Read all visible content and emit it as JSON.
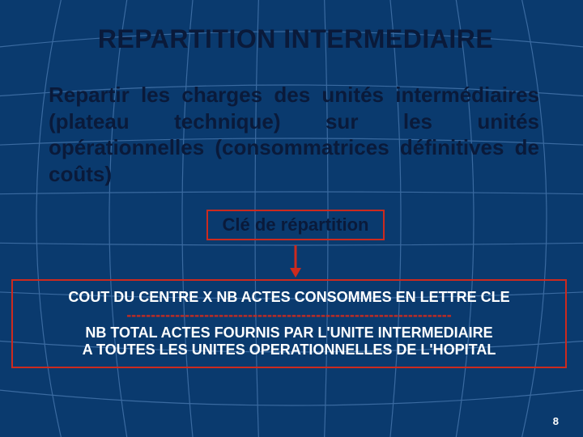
{
  "colors": {
    "background": "#0a3a6e",
    "grid_line": "#3a6aa0",
    "text_dark": "#0a1a3a",
    "text_white": "#ffffff",
    "border_red": "#cc2a1e",
    "arrow_red": "#cc2a1e"
  },
  "title": {
    "text": "REPARTITION INTERMEDIAIRE",
    "fontsize": 32,
    "color": "#0a1a3a"
  },
  "paragraph": {
    "text": "Repartir les charges des unités intermédiaires (plateau technique) sur les unités opérationnelles (consommatrices définitives de coûts)",
    "fontsize": 26,
    "color": "#0a1a3a"
  },
  "key_box": {
    "label": "Clé de répartition",
    "fontsize": 22,
    "text_color": "#0a1a3a",
    "border_color": "#cc2a1e"
  },
  "arrow": {
    "color": "#cc2a1e",
    "height": 40
  },
  "formula": {
    "line1": "COUT DU CENTRE X NB ACTES CONSOMMES EN LETTRE CLE",
    "divider": "-------------------------------------------------------------------",
    "line2": "NB TOTAL ACTES FOURNIS PAR L'UNITE INTERMEDIAIRE",
    "line3": "A  TOUTES LES UNITES OPERATIONNELLES DE L'HOPITAL",
    "fontsize": 18,
    "text_color": "#ffffff",
    "divider_color": "#cc2a1e",
    "border_color": "#cc2a1e"
  },
  "page_number": {
    "value": "8",
    "fontsize": 13,
    "color": "#ffffff"
  },
  "grid": {
    "stroke": "#3a6aa0",
    "stroke_width": 1.2,
    "vertical_count": 9,
    "curve_count": 9
  }
}
